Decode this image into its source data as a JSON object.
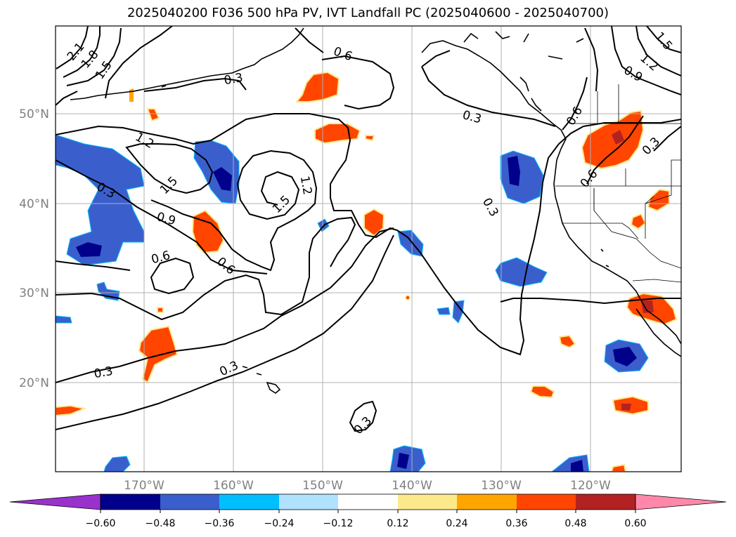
{
  "title": "2025040200 F036 500 hPa PV, IVT Landfall PC (2025040600 - 2025040700)",
  "latitude_labels": [
    "50°N",
    "40°N",
    "30°N",
    "20°N"
  ],
  "longitude_labels": [
    "170°W",
    "160°W",
    "150°W",
    "140°W",
    "130°W",
    "120°W"
  ],
  "contour_labels": [
    "2.1",
    "1.8",
    "1.5",
    "0.3",
    "0.6",
    "0.3",
    "1.2",
    "1.5",
    "1.2",
    "1.5",
    "0.3",
    "0.9",
    "0.6",
    "0.6",
    "0.3",
    "0.3",
    "0.3",
    "0.3",
    "0.6",
    "0.6",
    "0.3",
    "1.5",
    "1.2",
    "0.9"
  ],
  "colorbar": {
    "ticks": [
      "−0.60",
      "−0.48",
      "−0.36",
      "−0.24",
      "−0.12",
      "0.12",
      "0.24",
      "0.36",
      "0.48",
      "0.60"
    ],
    "colors": [
      "#9932cc",
      "#00008b",
      "#3a5fcd",
      "#00bfff",
      "#b0e2ff",
      "#ffffff",
      "#fce98a",
      "#ffa500",
      "#ff4500",
      "#b22222",
      "#ff88aa"
    ]
  }
}
